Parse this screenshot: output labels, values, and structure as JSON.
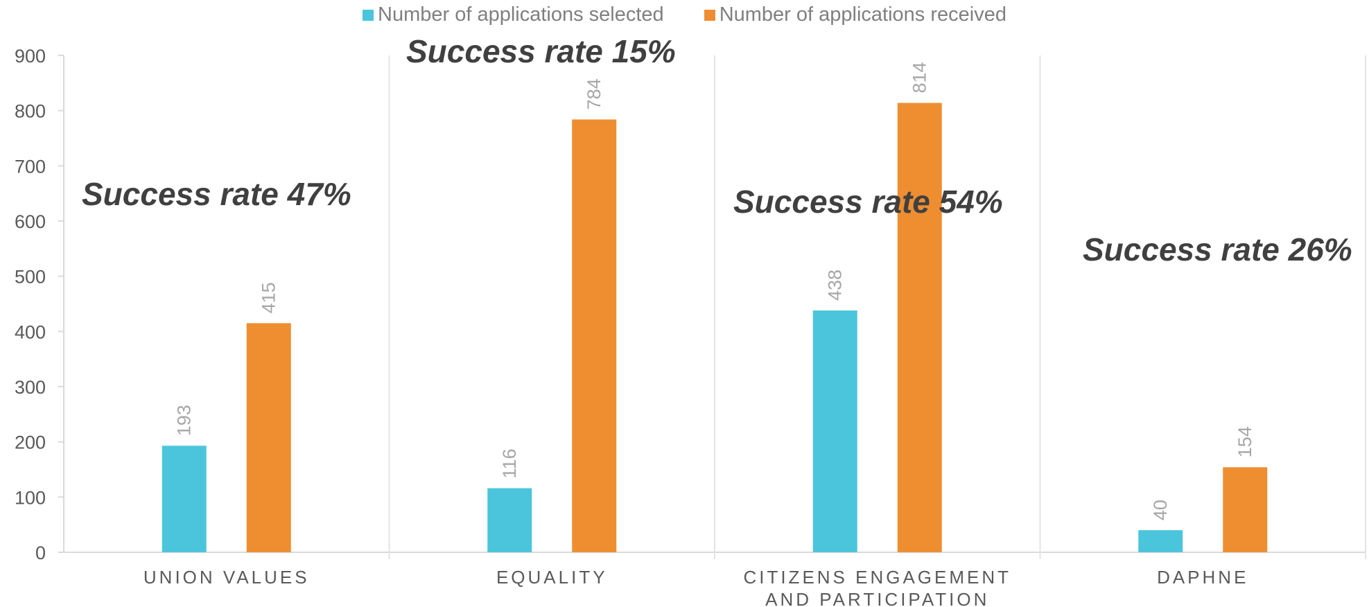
{
  "chart_data": {
    "type": "bar",
    "categories": [
      [
        "UNION VALUES"
      ],
      [
        "EQUALITY"
      ],
      [
        "CITIZENS ENGAGEMENT",
        "AND PARTICIPATION"
      ],
      [
        "DAPHNE"
      ]
    ],
    "series": [
      {
        "name": "Number of applications selected",
        "color": "#4bc5dc",
        "values": [
          193,
          116,
          438,
          40
        ]
      },
      {
        "name": "Number of applications received",
        "color": "#ee8e31",
        "values": [
          415,
          784,
          814,
          154
        ]
      }
    ],
    "ylim": [
      0,
      900
    ],
    "yticks": [
      0,
      100,
      200,
      300,
      400,
      500,
      600,
      700,
      800,
      900
    ],
    "legend_position": "top-center",
    "grid": false,
    "annotations": [
      "Success rate 47%",
      "Success rate 15%",
      "Success rate 54%",
      "Success rate 26%"
    ]
  }
}
